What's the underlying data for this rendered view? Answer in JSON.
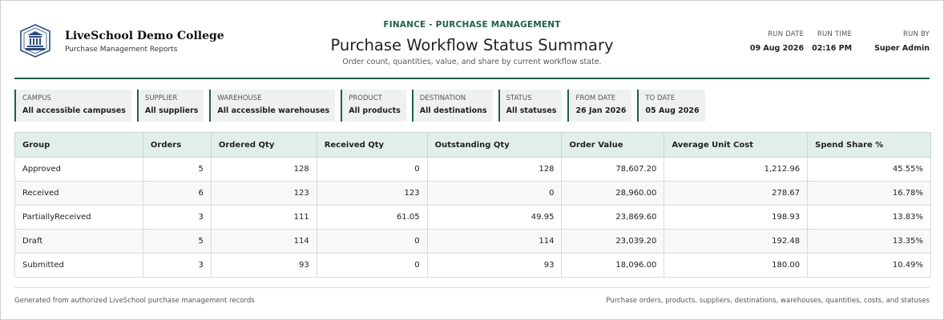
{
  "org": {
    "name": "LiveSchool Demo College",
    "subtitle": "Purchase Management Reports"
  },
  "report": {
    "eyebrow": "FINANCE - PURCHASE MANAGEMENT",
    "title": "Purchase Workflow Status Summary",
    "subtitle": "Order count, quantities, value, and share by current workflow state."
  },
  "meta": {
    "run_date_label": "RUN DATE",
    "run_date": "09 Aug 2026",
    "run_time_label": "RUN TIME",
    "run_time": "02:16 PM",
    "run_by_label": "RUN BY",
    "run_by": "Super Admin"
  },
  "filters": [
    {
      "label": "CAMPUS",
      "value": "All accessible campuses"
    },
    {
      "label": "SUPPLIER",
      "value": "All suppliers"
    },
    {
      "label": "WAREHOUSE",
      "value": "All accessible warehouses"
    },
    {
      "label": "PRODUCT",
      "value": "All products"
    },
    {
      "label": "DESTINATION",
      "value": "All destinations"
    },
    {
      "label": "STATUS",
      "value": "All statuses"
    },
    {
      "label": "FROM DATE",
      "value": "26 Jan 2026"
    },
    {
      "label": "TO DATE",
      "value": "05 Aug 2026"
    }
  ],
  "table": {
    "columns": [
      "Group",
      "Orders",
      "Ordered Qty",
      "Received Qty",
      "Outstanding Qty",
      "Order Value",
      "Average Unit Cost",
      "Spend Share %"
    ],
    "rows": [
      [
        "Approved",
        "5",
        "128",
        "0",
        "128",
        "78,607.20",
        "1,212.96",
        "45.55%"
      ],
      [
        "Received",
        "6",
        "123",
        "123",
        "0",
        "28,960.00",
        "278.67",
        "16.78%"
      ],
      [
        "PartiallyReceived",
        "3",
        "111",
        "61.05",
        "49.95",
        "23,869.60",
        "198.93",
        "13.83%"
      ],
      [
        "Draft",
        "5",
        "114",
        "0",
        "114",
        "23,039.20",
        "192.48",
        "13.35%"
      ],
      [
        "Submitted",
        "3",
        "93",
        "0",
        "93",
        "18,096.00",
        "180.00",
        "10.49%"
      ]
    ]
  },
  "footer": {
    "left": "Generated from authorized LiveSchool purchase management records",
    "right": "Purchase orders, products, suppliers, destinations, warehouses, quantities, costs, and statuses"
  },
  "colors": {
    "accent": "#1f5e4f",
    "header_fill": "#e1eeea",
    "filter_fill": "#eef1f0"
  },
  "icons": {
    "logo": "college-crest-icon"
  }
}
